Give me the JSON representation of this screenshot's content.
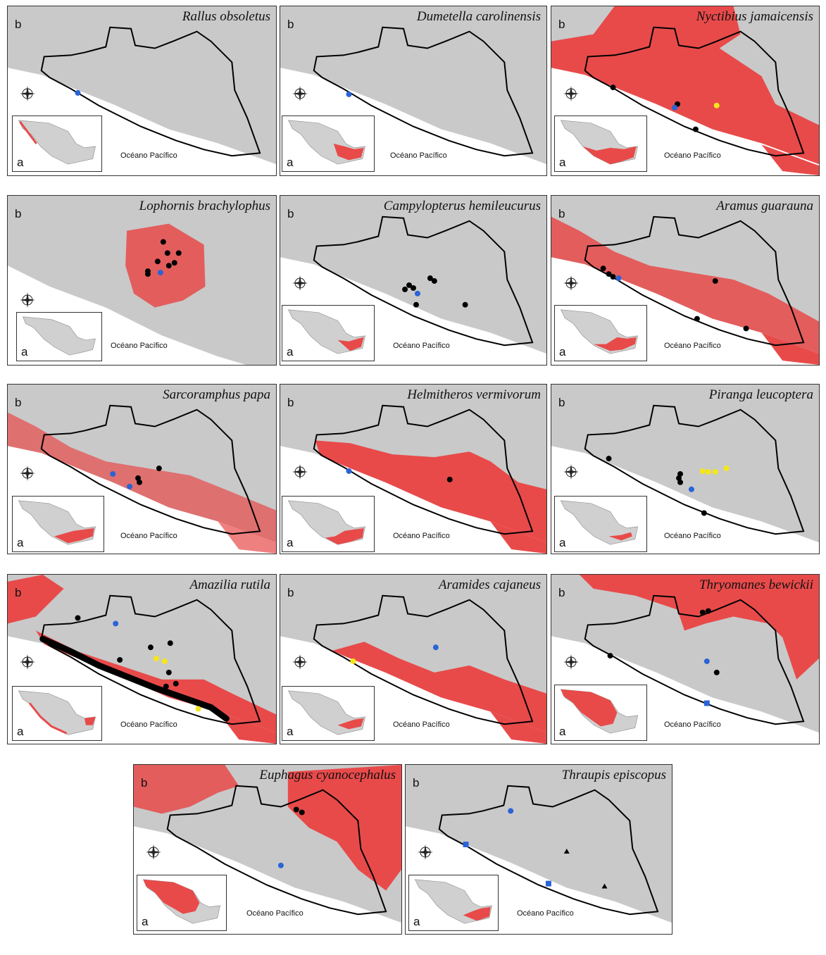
{
  "labels": {
    "inset": "a",
    "main": "b",
    "ocean": "Océano Pacífico"
  },
  "colors": {
    "range": "#e84a4a",
    "relief": "#c9c9c9",
    "sea": "#ffffff",
    "blue": "#2a63d6",
    "yellow": "#f5e61a",
    "black": "#000000"
  },
  "panels": [
    {
      "species": "Rallus obsoletus"
    },
    {
      "species": "Dumetella carolinensis"
    },
    {
      "species": "Nyctibius jamaicensis"
    },
    {
      "species": "Lophornis brachylophus"
    },
    {
      "species": "Campylopterus hemileucurus"
    },
    {
      "species": "Aramus guarauna"
    },
    {
      "species": "Sarcoramphus papa"
    },
    {
      "species": "Helmitheros vermivorum"
    },
    {
      "species": "Piranga leucoptera"
    },
    {
      "species": "Amazilia rutila"
    },
    {
      "species": "Aramides cajaneus"
    },
    {
      "species": "Thryomanes bewickii"
    },
    {
      "species": "Euphagus cyanocephalus"
    },
    {
      "species": "Thraupis episcopus"
    }
  ]
}
